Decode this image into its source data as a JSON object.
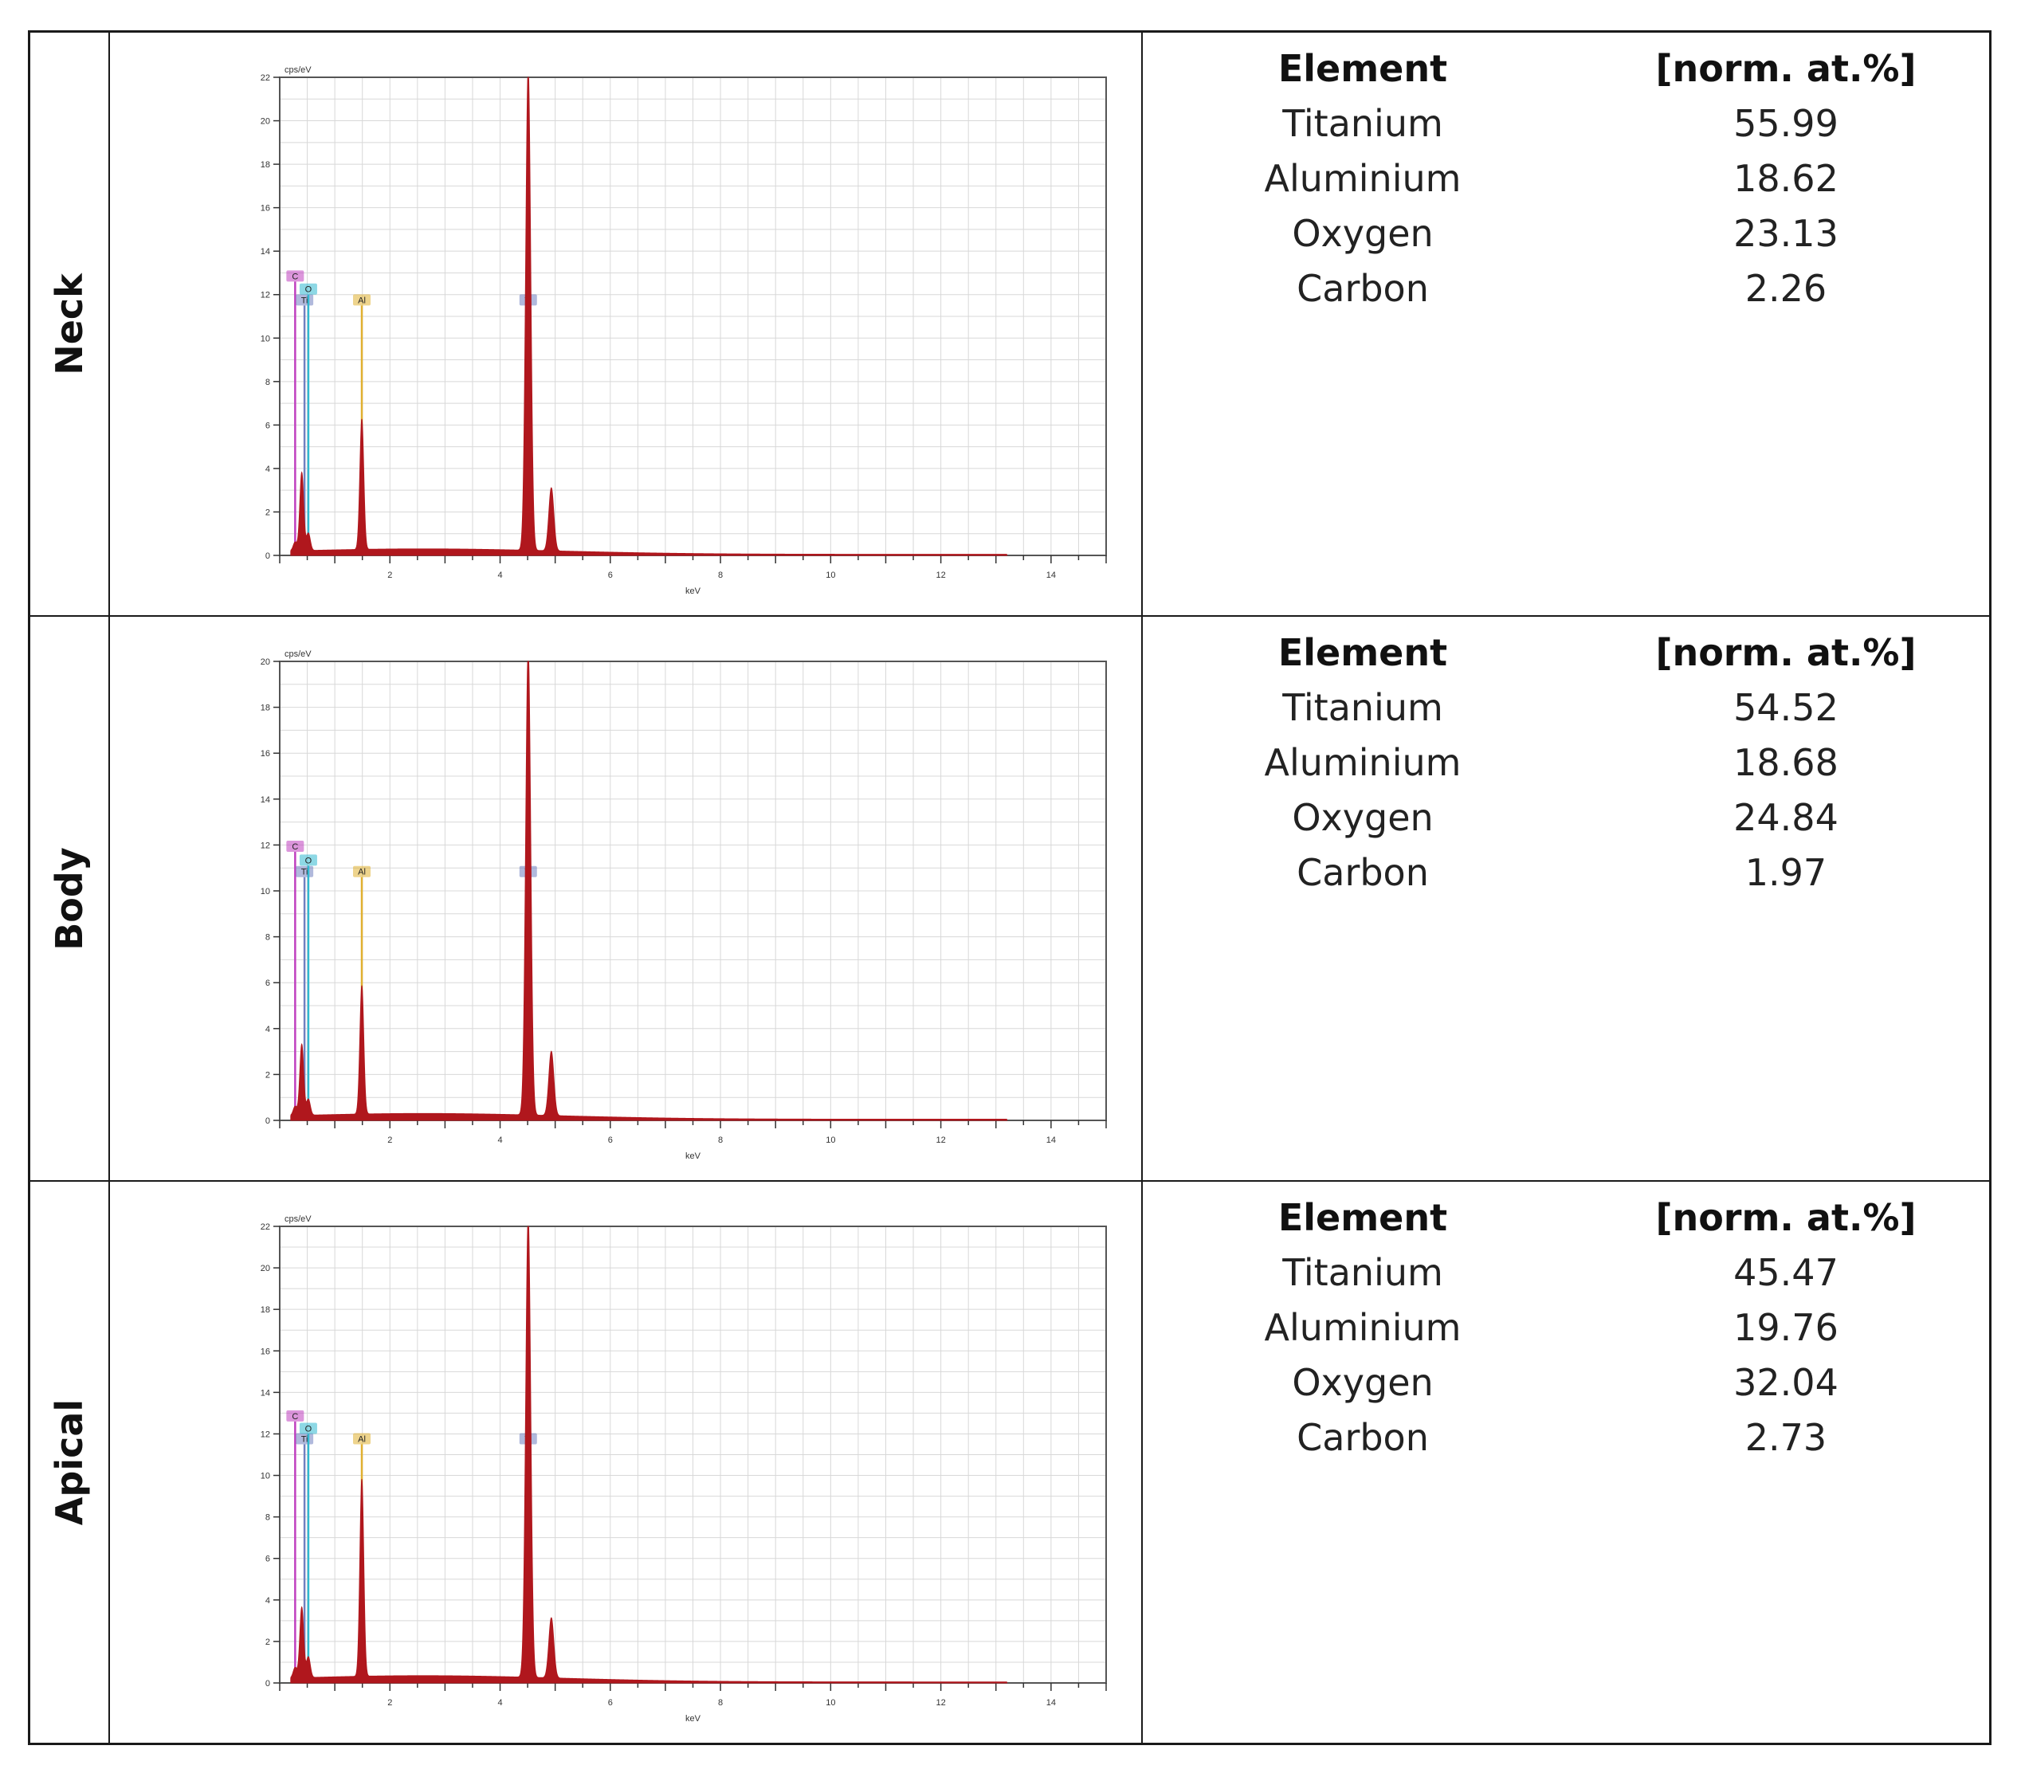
{
  "panels": [
    {
      "label": "Neck",
      "table": {
        "col1_header": "Element",
        "col2_header": "[norm. at.%]",
        "rows": [
          {
            "element": "Titanium",
            "value": "55.99"
          },
          {
            "element": "Aluminium",
            "value": "18.62"
          },
          {
            "element": "Oxygen",
            "value": "23.13"
          },
          {
            "element": "Carbon",
            "value": "2.26"
          }
        ]
      }
    },
    {
      "label": "Body",
      "table": {
        "col1_header": "Element",
        "col2_header": "[norm. at.%]",
        "rows": [
          {
            "element": "Titanium",
            "value": "54.52"
          },
          {
            "element": "Aluminium",
            "value": "18.68"
          },
          {
            "element": "Oxygen",
            "value": "24.84"
          },
          {
            "element": "Carbon",
            "value": "1.97"
          }
        ]
      }
    },
    {
      "label": "Apical",
      "table": {
        "col1_header": "Element",
        "col2_header": "[norm. at.%]",
        "rows": [
          {
            "element": "Titanium",
            "value": "45.47"
          },
          {
            "element": "Aluminium",
            "value": "19.76"
          },
          {
            "element": "Oxygen",
            "value": "32.04"
          },
          {
            "element": "Carbon",
            "value": "2.73"
          }
        ]
      }
    }
  ],
  "colors": {
    "spectrum": "#b0171d",
    "C": "#c040c0",
    "O": "#30b8d0",
    "Ti": "#7080c0",
    "Al": "#e0b030",
    "grid": "#d8d8d8"
  },
  "chart_data": [
    {
      "type": "area",
      "panel": "Neck",
      "ylabel": "cps/eV",
      "xlabel": "keV",
      "xlim": [
        0,
        15
      ],
      "ylim": [
        0,
        22
      ],
      "xticks": [
        2,
        4,
        6,
        8,
        10,
        12,
        14
      ],
      "yticks": [
        0,
        2,
        4,
        6,
        8,
        10,
        12,
        14,
        16,
        18,
        20,
        22
      ],
      "element_markers": [
        {
          "name": "C",
          "x": 0.28,
          "y": 12.6
        },
        {
          "name": "Ti",
          "x": 0.45,
          "y": 11.5
        },
        {
          "name": "O",
          "x": 0.52,
          "y": 12.0
        },
        {
          "name": "Al",
          "x": 1.49,
          "y": 11.5
        },
        {
          "name": "Ti",
          "x": 4.51,
          "y": 11.5
        }
      ],
      "peaks": [
        {
          "x": 0.28,
          "y": 0.4
        },
        {
          "x": 0.4,
          "y": 3.6
        },
        {
          "x": 0.52,
          "y": 0.8
        },
        {
          "x": 1.49,
          "y": 6.0
        },
        {
          "x": 4.51,
          "y": 22.2
        },
        {
          "x": 4.93,
          "y": 2.9
        }
      ],
      "background": 0.25
    },
    {
      "type": "area",
      "panel": "Body",
      "ylabel": "cps/eV",
      "xlabel": "keV",
      "xlim": [
        0,
        15
      ],
      "ylim": [
        0,
        20
      ],
      "xticks": [
        2,
        4,
        6,
        8,
        10,
        12,
        14
      ],
      "yticks": [
        0,
        2,
        4,
        6,
        8,
        10,
        12,
        14,
        16,
        18,
        20
      ],
      "element_markers": [
        {
          "name": "C",
          "x": 0.28,
          "y": 11.7
        },
        {
          "name": "Ti",
          "x": 0.45,
          "y": 10.6
        },
        {
          "name": "O",
          "x": 0.52,
          "y": 11.1
        },
        {
          "name": "Al",
          "x": 1.49,
          "y": 10.6
        },
        {
          "name": "Ti",
          "x": 4.51,
          "y": 10.6
        }
      ],
      "peaks": [
        {
          "x": 0.28,
          "y": 0.4
        },
        {
          "x": 0.4,
          "y": 3.1
        },
        {
          "x": 0.52,
          "y": 0.7
        },
        {
          "x": 1.49,
          "y": 5.6
        },
        {
          "x": 4.51,
          "y": 20.4
        },
        {
          "x": 4.93,
          "y": 2.8
        }
      ],
      "background": 0.25
    },
    {
      "type": "area",
      "panel": "Apical",
      "ylabel": "cps/eV",
      "xlabel": "keV",
      "xlim": [
        0,
        15
      ],
      "ylim": [
        0,
        22
      ],
      "xticks": [
        2,
        4,
        6,
        8,
        10,
        12,
        14
      ],
      "yticks": [
        0,
        2,
        4,
        6,
        8,
        10,
        12,
        14,
        16,
        18,
        20,
        22
      ],
      "element_markers": [
        {
          "name": "C",
          "x": 0.28,
          "y": 12.6
        },
        {
          "name": "Ti",
          "x": 0.45,
          "y": 11.5
        },
        {
          "name": "O",
          "x": 0.52,
          "y": 12.0
        },
        {
          "name": "Al",
          "x": 1.49,
          "y": 11.5
        },
        {
          "name": "Ti",
          "x": 4.51,
          "y": 11.5
        }
      ],
      "peaks": [
        {
          "x": 0.28,
          "y": 0.5
        },
        {
          "x": 0.4,
          "y": 3.4
        },
        {
          "x": 0.52,
          "y": 1.0
        },
        {
          "x": 1.49,
          "y": 9.5
        },
        {
          "x": 4.51,
          "y": 22.2
        },
        {
          "x": 4.93,
          "y": 2.9
        }
      ],
      "background": 0.3
    }
  ]
}
